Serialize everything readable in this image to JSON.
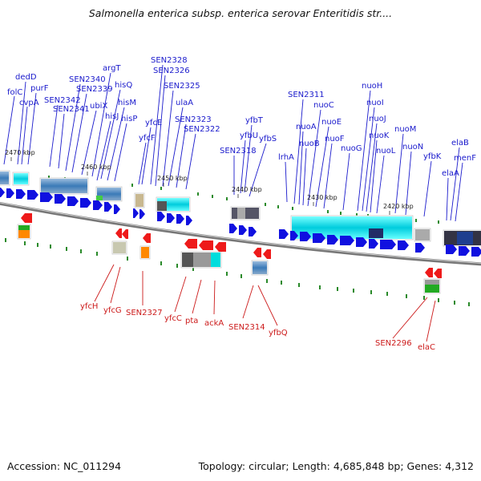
{
  "title": "Salmonella enterica subsp. enterica serovar Enteritidis str....",
  "footer": {
    "accession": "Accession: NC_011294",
    "summary": "Topology: circular; Length: 4,685,848 bp; Genes: 4,312"
  },
  "colors": {
    "forward_label": "#1a1acc",
    "reverse_label": "#cc1a1a",
    "forward_gene": "#1010e0",
    "reverse_gene": "#ee1a1a",
    "backbone": "#888888",
    "tick": "#2a8a2a"
  },
  "ticks": [
    "2470 kbp",
    "2460 kbp",
    "2450 kbp",
    "2440 kbp",
    "2430 kbp",
    "2420 kbp"
  ],
  "top_labels": [
    "dedD",
    "folC",
    "cvpA",
    "purF",
    "SEN2342",
    "SEN2341",
    "SEN2340",
    "SEN2339",
    "ubiX",
    "argT",
    "hisQ",
    "hisJ",
    "hisM",
    "hisP",
    "yfcE",
    "yfcF",
    "SEN2328",
    "SEN2326",
    "SEN2325",
    "ulaA",
    "SEN2323",
    "SEN2322",
    "yfbT",
    "yfbU",
    "SEN2318",
    "yfbS",
    "lrhA",
    "SEN2311",
    "nuoA",
    "nuoB",
    "nuoC",
    "nuoE",
    "nuoF",
    "nuoG",
    "nuoH",
    "nuoI",
    "nuoJ",
    "nuoK",
    "nuoL",
    "nuoM",
    "nuoN",
    "yfbK",
    "elaB",
    "elaA",
    "menF"
  ],
  "bottom_labels": [
    "yfcH",
    "yfcG",
    "SEN2327",
    "yfcC",
    "pta",
    "ackA",
    "SEN2314",
    "yfbQ",
    "SEN2296",
    "elaC"
  ]
}
